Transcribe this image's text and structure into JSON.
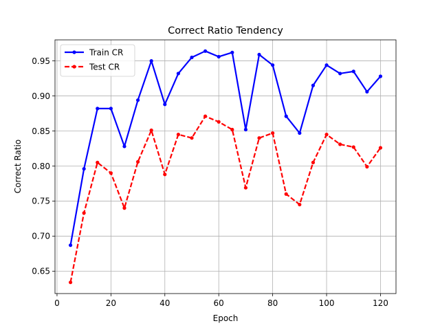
{
  "chart_data": {
    "type": "line",
    "title": "Correct Ratio Tendency",
    "xlabel": "Epoch",
    "ylabel": "Correct Ratio",
    "xlim": [
      -0.75,
      125.75
    ],
    "ylim": [
      0.618,
      0.98
    ],
    "xticks": [
      0,
      20,
      40,
      60,
      80,
      100,
      120
    ],
    "yticks": [
      0.65,
      0.7,
      0.75,
      0.8,
      0.85,
      0.9,
      0.95
    ],
    "xtick_labels": [
      "0",
      "20",
      "40",
      "60",
      "80",
      "100",
      "120"
    ],
    "ytick_labels": [
      "0.65",
      "0.70",
      "0.75",
      "0.80",
      "0.85",
      "0.90",
      "0.95"
    ],
    "grid": true,
    "legend_position": "top-left",
    "x": [
      5,
      10,
      15,
      20,
      25,
      30,
      35,
      40,
      45,
      50,
      55,
      60,
      65,
      70,
      75,
      80,
      85,
      90,
      95,
      100,
      105,
      110,
      115,
      120
    ],
    "series": [
      {
        "name": "Train CR",
        "color": "#0000ff",
        "line_style": "solid",
        "values": [
          0.687,
          0.796,
          0.882,
          0.882,
          0.828,
          0.894,
          0.95,
          0.888,
          0.932,
          0.955,
          0.964,
          0.956,
          0.962,
          0.852,
          0.959,
          0.944,
          0.871,
          0.847,
          0.915,
          0.944,
          0.932,
          0.935,
          0.906,
          0.928
        ]
      },
      {
        "name": "Test CR",
        "color": "#ff0000",
        "line_style": "dashed",
        "values": [
          0.634,
          0.733,
          0.805,
          0.79,
          0.74,
          0.806,
          0.851,
          0.788,
          0.845,
          0.84,
          0.871,
          0.863,
          0.852,
          0.769,
          0.84,
          0.847,
          0.76,
          0.745,
          0.805,
          0.845,
          0.831,
          0.827,
          0.799,
          0.826
        ]
      }
    ]
  }
}
